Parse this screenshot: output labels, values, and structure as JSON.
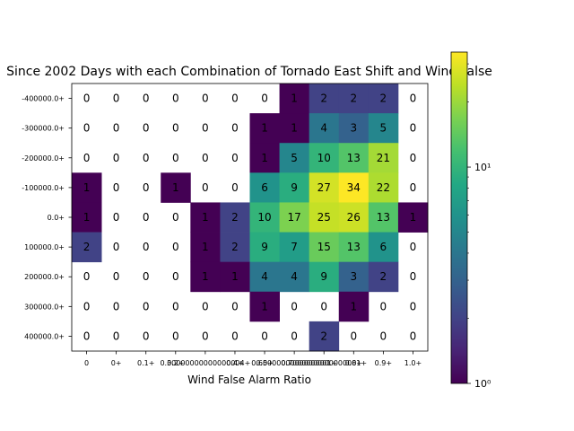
{
  "chart_data": {
    "type": "heatmap",
    "title": "Since 2002 Days with each Combination of Tornado East Shift and Wind False",
    "xlabel": "Wind False Alarm Ratio",
    "ylabel": "",
    "x_tick_labels": [
      "0",
      "0+",
      "0.1+",
      "0.2+",
      "0.30000000000000004+",
      "0.4+",
      "0.5+",
      "0.6000000000000001+",
      "0.7000000000000001+",
      "0.8+",
      "0.9+",
      "1.0+"
    ],
    "y_tick_labels": [
      "-400000.0+",
      "-300000.0+",
      "-200000.0+",
      "-100000.0+",
      "0.0+",
      "100000.0+",
      "200000.0+",
      "300000.0+",
      "400000.0+"
    ],
    "values": [
      [
        0,
        0,
        0,
        0,
        0,
        0,
        0,
        1,
        2,
        2,
        2,
        0
      ],
      [
        0,
        0,
        0,
        0,
        0,
        0,
        1,
        1,
        4,
        3,
        5,
        0
      ],
      [
        0,
        0,
        0,
        0,
        0,
        0,
        1,
        5,
        10,
        13,
        21,
        0
      ],
      [
        1,
        0,
        0,
        1,
        0,
        0,
        6,
        9,
        27,
        34,
        22,
        0
      ],
      [
        1,
        0,
        0,
        0,
        1,
        2,
        10,
        17,
        25,
        26,
        13,
        1
      ],
      [
        2,
        0,
        0,
        0,
        1,
        2,
        9,
        7,
        15,
        13,
        6,
        0
      ],
      [
        0,
        0,
        0,
        0,
        1,
        1,
        4,
        4,
        9,
        3,
        2,
        0
      ],
      [
        0,
        0,
        0,
        0,
        0,
        0,
        1,
        0,
        0,
        1,
        0,
        0
      ],
      [
        0,
        0,
        0,
        0,
        0,
        0,
        0,
        0,
        2,
        0,
        0,
        0
      ]
    ],
    "colormap": "viridis",
    "color_scale": "log",
    "color_range": [
      1,
      34
    ],
    "colorbar_major_ticks": [
      {
        "value": 1,
        "label": "10⁰"
      },
      {
        "value": 10,
        "label": "10¹"
      }
    ],
    "zero_cells": "blank",
    "grid": false,
    "legend": "colorbar right"
  }
}
